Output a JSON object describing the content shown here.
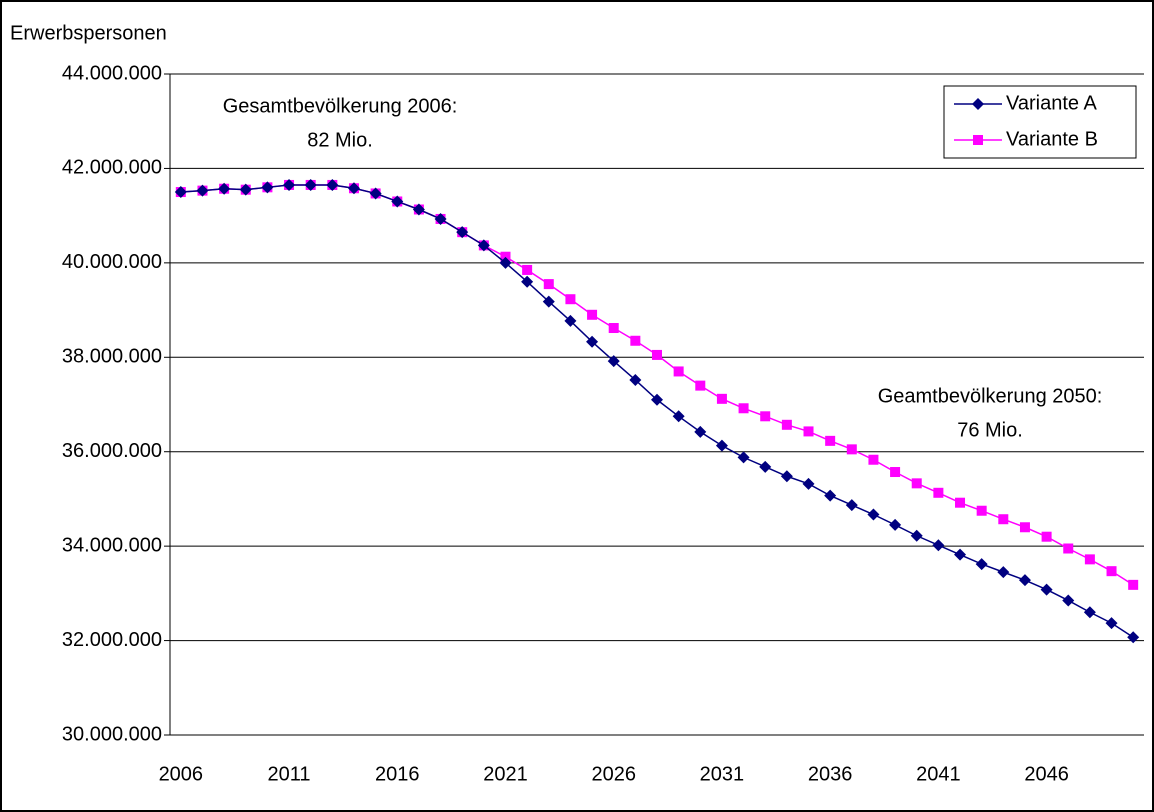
{
  "chart_data": {
    "type": "line",
    "y_label": "Erwerbspersonen",
    "categories": [
      "2006",
      null,
      null,
      null,
      null,
      "2011",
      null,
      null,
      null,
      null,
      "2016",
      null,
      null,
      null,
      null,
      "2021",
      null,
      null,
      null,
      null,
      "2026",
      null,
      null,
      null,
      null,
      "2031",
      null,
      null,
      null,
      null,
      "2036",
      null,
      null,
      null,
      null,
      "2041",
      null,
      null,
      null,
      null,
      "2046",
      null,
      null,
      null,
      null
    ],
    "series": [
      {
        "name": "Variante A",
        "color": "#000080",
        "marker": "diamond",
        "values": [
          41500000,
          41530000,
          41570000,
          41550000,
          41600000,
          41650000,
          41650000,
          41650000,
          41580000,
          41470000,
          41300000,
          41130000,
          40930000,
          40650000,
          40370000,
          40000000,
          39600000,
          39180000,
          38770000,
          38330000,
          37920000,
          37520000,
          37100000,
          36750000,
          36420000,
          36130000,
          35880000,
          35680000,
          35480000,
          35320000,
          35070000,
          34870000,
          34670000,
          34450000,
          34220000,
          34020000,
          33820000,
          33620000,
          33450000,
          33280000,
          33080000,
          32850000,
          32600000,
          32370000,
          32070000
        ]
      },
      {
        "name": "Variante B",
        "color": "#ff00ff",
        "marker": "square",
        "values": [
          41500000,
          41530000,
          41570000,
          41550000,
          41600000,
          41650000,
          41650000,
          41650000,
          41580000,
          41470000,
          41300000,
          41130000,
          40930000,
          40650000,
          40370000,
          40130000,
          39850000,
          39550000,
          39230000,
          38900000,
          38620000,
          38350000,
          38050000,
          37700000,
          37400000,
          37120000,
          36920000,
          36750000,
          36570000,
          36430000,
          36230000,
          36050000,
          35830000,
          35570000,
          35330000,
          35130000,
          34920000,
          34750000,
          34570000,
          34400000,
          34200000,
          33950000,
          33720000,
          33470000,
          33180000
        ]
      }
    ],
    "ylim": [
      30000000,
      44000000
    ],
    "yticks": [
      {
        "value": 30000000,
        "label": "30.000.000"
      },
      {
        "value": 32000000,
        "label": "32.000.000"
      },
      {
        "value": 34000000,
        "label": "34.000.000"
      },
      {
        "value": 36000000,
        "label": "36.000.000"
      },
      {
        "value": 38000000,
        "label": "38.000.000"
      },
      {
        "value": 40000000,
        "label": "40.000.000"
      },
      {
        "value": 42000000,
        "label": "42.000.000"
      },
      {
        "value": 44000000,
        "label": "44.000.000"
      }
    ],
    "grid": true,
    "legend": "top-right",
    "annotations": [
      {
        "lines": [
          "Gesamtbevölkerung 2006:",
          "82 Mio."
        ]
      },
      {
        "lines": [
          "Geamtbevölkerung 2050:",
          "76 Mio."
        ]
      }
    ]
  }
}
